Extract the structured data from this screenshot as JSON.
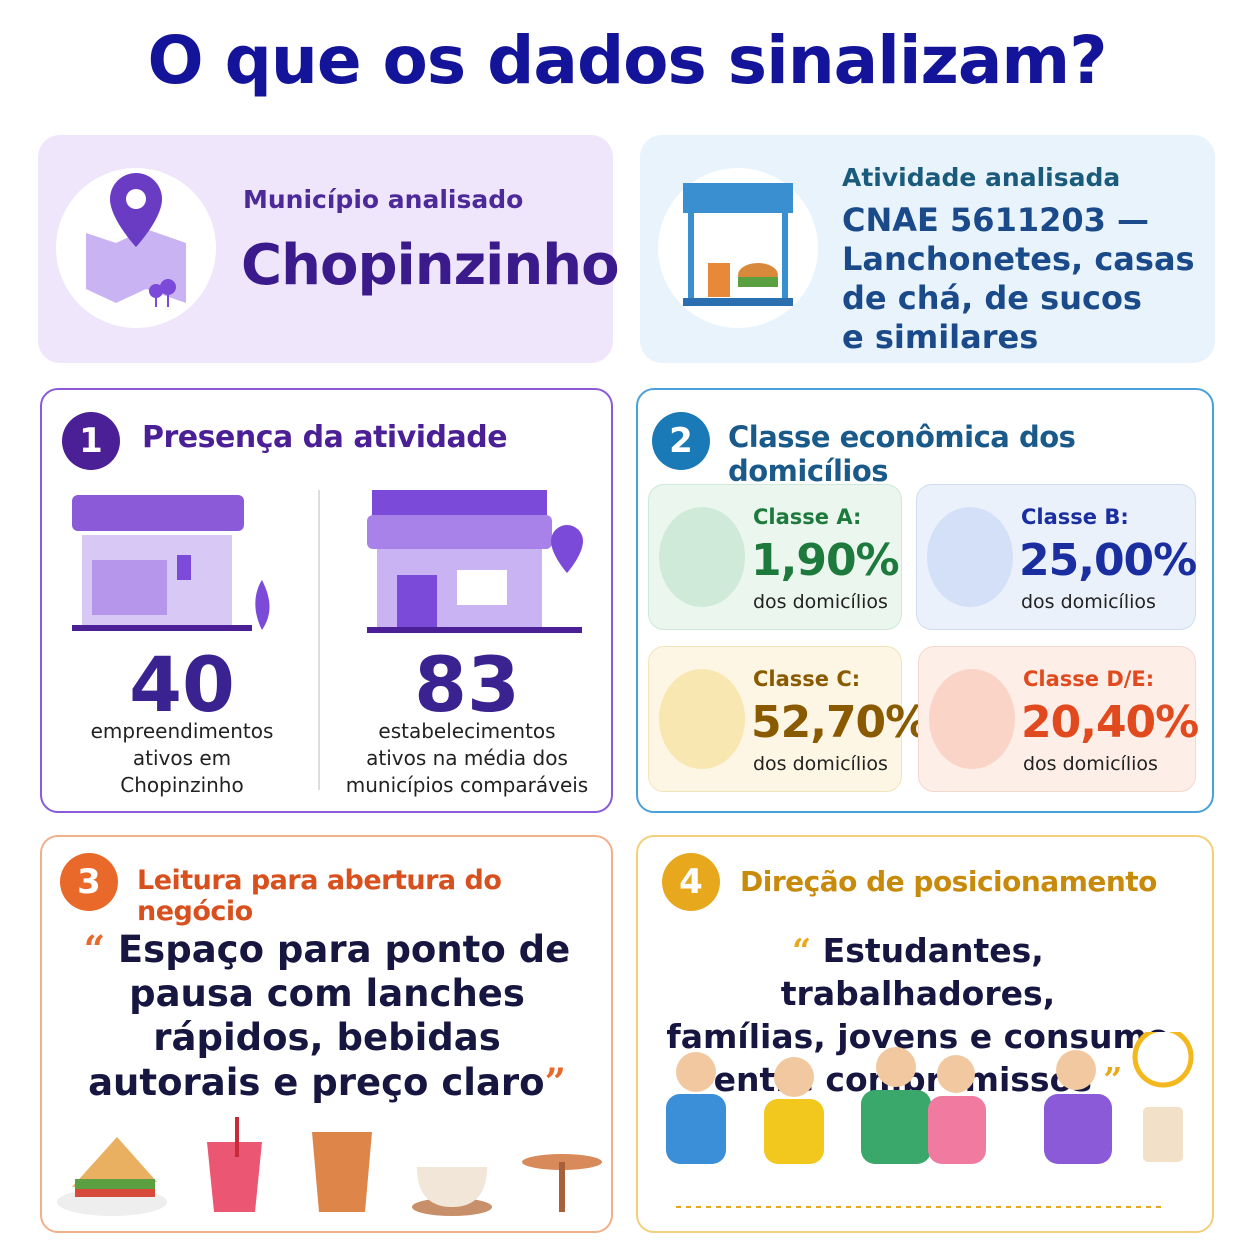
{
  "title": "O que os dados sinalizam?",
  "municipality": {
    "label": "Município analisado",
    "name": "Chopinzinho"
  },
  "activity": {
    "label": "Atividade analisada",
    "lines": [
      "CNAE 5611203 —",
      "Lanchonetes, casas",
      "de chá, de sucos",
      "e similares"
    ]
  },
  "presence": {
    "number": "1",
    "title": "Presença da atividade",
    "stats": [
      {
        "value": "40",
        "lines": [
          "empreendimentos",
          "ativos em",
          "Chopinzinho"
        ]
      },
      {
        "value": "83",
        "lines": [
          "estabelecimentos",
          "ativos na média dos",
          "municípios comparáveis"
        ]
      }
    ]
  },
  "economic_class": {
    "number": "2",
    "title": "Classe econômica dos domicílios",
    "classes": [
      {
        "label": "Classe A:",
        "value": "1,90%",
        "note": "dos domicílios"
      },
      {
        "label": "Classe B:",
        "value": "25,00%",
        "note": "dos domicílios"
      },
      {
        "label": "Classe C:",
        "value": "52,70%",
        "note": "dos domicílios"
      },
      {
        "label": "Classe D/E:",
        "value": "20,40%",
        "note": "dos domicílios"
      }
    ]
  },
  "reading": {
    "number": "3",
    "title": "Leitura para abertura do negócio",
    "open_quote": "“",
    "lines": [
      "Espaço para ponto de",
      "pausa com lanches",
      "rápidos, bebidas",
      "autorais e preço claro"
    ],
    "close_quote": "”"
  },
  "positioning": {
    "number": "4",
    "title": "Direção de posicionamento",
    "open_quote": "“",
    "lines": [
      "Estudantes, trabalhadores,",
      "famílias, jovens e consumo",
      "entre compromissos"
    ],
    "close_quote": "”"
  }
}
